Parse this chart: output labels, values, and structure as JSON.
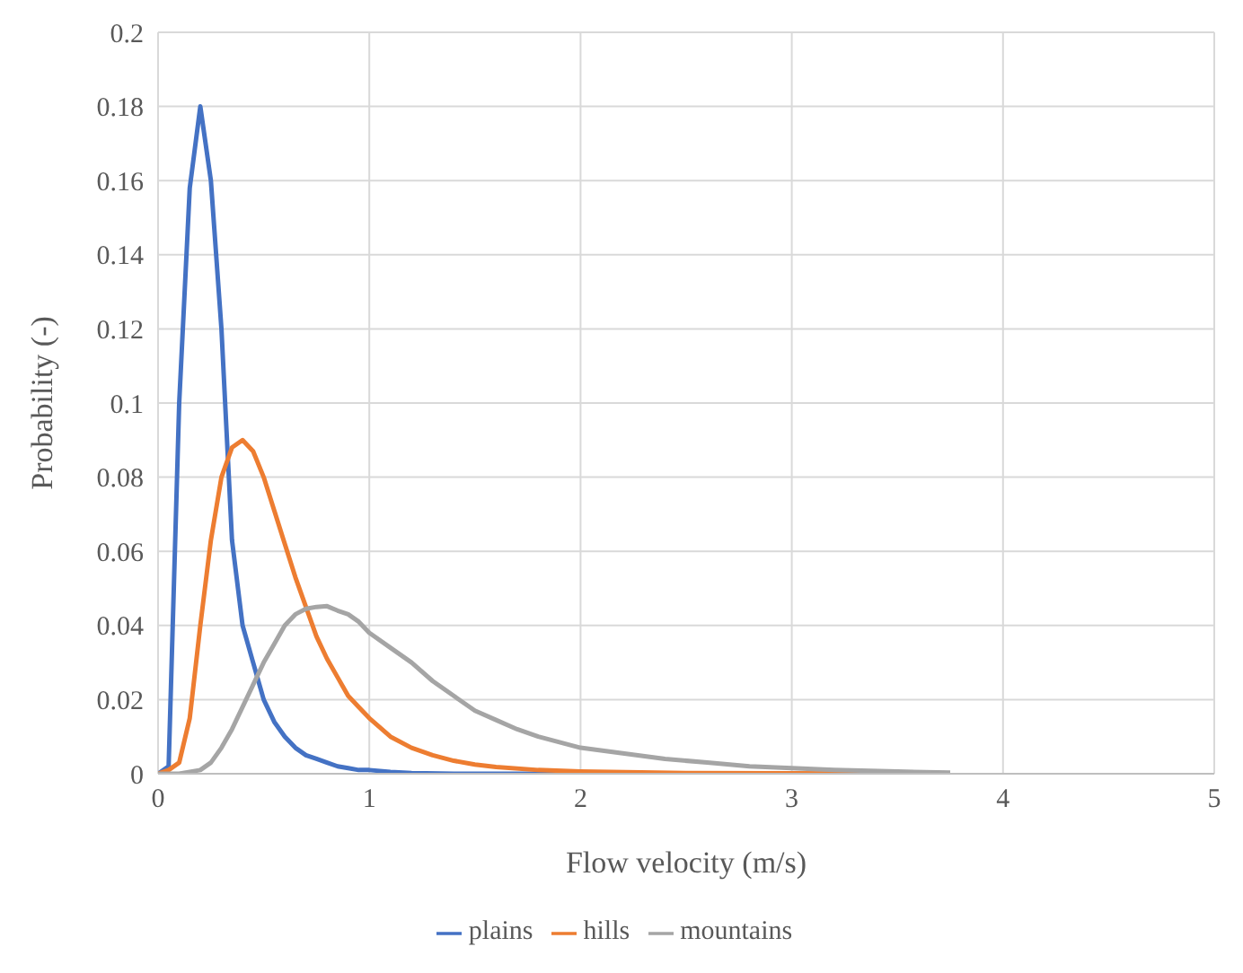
{
  "chart_data": {
    "type": "line",
    "xlabel": "Flow velocity (m/s)",
    "ylabel": "Probability (-)",
    "xlim": [
      0,
      5
    ],
    "xticks": [
      0,
      1,
      2,
      3,
      4,
      5
    ],
    "ylim": [
      0,
      0.2
    ],
    "yticks": [
      0,
      0.02,
      0.04,
      0.06,
      0.08,
      0.1,
      0.12,
      0.14,
      0.16,
      0.18,
      0.2
    ],
    "grid": true,
    "legend": "bottom",
    "marker": "none",
    "line_style": "solid",
    "series": [
      {
        "name": "plains",
        "color": "#4472c4",
        "x": [
          0,
          0.05,
          0.1,
          0.15,
          0.2,
          0.25,
          0.3,
          0.35,
          0.4,
          0.45,
          0.5,
          0.55,
          0.6,
          0.65,
          0.7,
          0.75,
          0.8,
          0.85,
          0.9,
          0.95,
          1,
          1.1,
          1.2,
          1.4,
          1.6,
          2
        ],
        "values": [
          0,
          0.002,
          0.1,
          0.158,
          0.18,
          0.16,
          0.12,
          0.063,
          0.04,
          0.03,
          0.02,
          0.014,
          0.01,
          0.007,
          0.005,
          0.004,
          0.003,
          0.002,
          0.0015,
          0.001,
          0.001,
          0.0005,
          0.0002,
          0,
          0,
          0
        ]
      },
      {
        "name": "hills",
        "color": "#ed7d31",
        "x": [
          0,
          0.05,
          0.1,
          0.15,
          0.2,
          0.25,
          0.3,
          0.35,
          0.4,
          0.45,
          0.5,
          0.55,
          0.6,
          0.65,
          0.7,
          0.75,
          0.8,
          0.85,
          0.9,
          0.95,
          1,
          1.1,
          1.2,
          1.3,
          1.4,
          1.5,
          1.6,
          1.8,
          2,
          2.5,
          3,
          3.75
        ],
        "values": [
          0,
          0.001,
          0.003,
          0.015,
          0.04,
          0.063,
          0.08,
          0.088,
          0.09,
          0.087,
          0.08,
          0.071,
          0.062,
          0.053,
          0.045,
          0.037,
          0.031,
          0.026,
          0.021,
          0.018,
          0.015,
          0.01,
          0.007,
          0.005,
          0.0035,
          0.0025,
          0.0018,
          0.001,
          0.0006,
          0.0002,
          0.0001,
          0
        ]
      },
      {
        "name": "mountains",
        "color": "#a5a5a5",
        "x": [
          0,
          0.1,
          0.2,
          0.25,
          0.3,
          0.35,
          0.4,
          0.45,
          0.5,
          0.55,
          0.6,
          0.65,
          0.7,
          0.75,
          0.8,
          0.85,
          0.9,
          0.95,
          1,
          1.1,
          1.2,
          1.3,
          1.4,
          1.5,
          1.6,
          1.7,
          1.8,
          1.9,
          2,
          2.2,
          2.4,
          2.6,
          2.8,
          3,
          3.2,
          3.5,
          3.75
        ],
        "values": [
          0,
          0,
          0.001,
          0.003,
          0.007,
          0.012,
          0.018,
          0.024,
          0.03,
          0.035,
          0.04,
          0.043,
          0.0445,
          0.045,
          0.0452,
          0.044,
          0.043,
          0.041,
          0.038,
          0.034,
          0.03,
          0.025,
          0.021,
          0.017,
          0.0145,
          0.012,
          0.01,
          0.0085,
          0.007,
          0.0055,
          0.004,
          0.003,
          0.002,
          0.0015,
          0.001,
          0.0006,
          0.0003
        ]
      }
    ]
  }
}
